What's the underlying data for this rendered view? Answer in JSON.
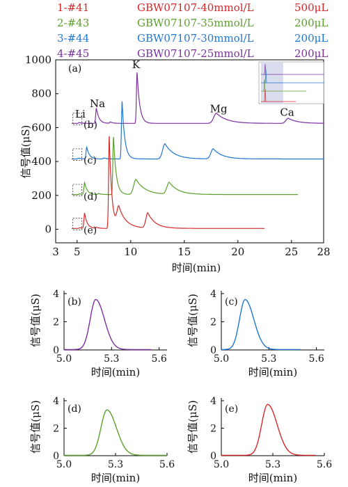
{
  "legend": [
    {
      "id": "1-#41",
      "sample": "GBW07107-40mmol/L",
      "volume": "500μL",
      "color": "#d62728"
    },
    {
      "id": "2-#43",
      "sample": "GBW07107-35mmol/L",
      "volume": "200μL",
      "color": "#5aa02c"
    },
    {
      "id": "3-#44",
      "sample": "GBW07107-30mmol/L",
      "volume": "200μL",
      "color": "#1f77d4"
    },
    {
      "id": "4-#45",
      "sample": "GBW07107-25mmol/L",
      "volume": "200μL",
      "color": "#7b2fa0"
    }
  ],
  "chart_data": [
    {
      "type": "line",
      "panel_label": "(a)",
      "xlabel": "时间(min)",
      "ylabel": "信号值(μS)",
      "x_ticks": [
        "3",
        "5",
        "10",
        "15",
        "20",
        "25",
        "28"
      ],
      "x_tick_values": [
        3,
        5,
        10,
        15,
        20,
        25,
        28
      ],
      "y_ticks": [
        "0",
        "200",
        "400",
        "600",
        "800",
        "1000"
      ],
      "y_tick_values": [
        0,
        200,
        400,
        600,
        800,
        1000
      ],
      "xlim": [
        3,
        28
      ],
      "ylim": [
        -80,
        1000
      ],
      "peak_labels": [
        {
          "text": "Li",
          "x": 5.3,
          "y": 660
        },
        {
          "text": "Na",
          "x": 6.9,
          "y": 720
        },
        {
          "text": "K",
          "x": 10.5,
          "y": 950
        },
        {
          "text": "Mg",
          "x": 18.2,
          "y": 690
        },
        {
          "text": "Ca",
          "x": 24.6,
          "y": 670
        }
      ],
      "inset_labels": [
        {
          "text": "(b)",
          "x": 5.6,
          "y": 598
        },
        {
          "text": "(c)",
          "x": 5.6,
          "y": 388
        },
        {
          "text": "(d)",
          "x": 5.6,
          "y": 175
        },
        {
          "text": "(e)",
          "x": 5.6,
          "y": -25
        }
      ],
      "series": [
        {
          "color": "#7b2fa0",
          "baseline": 625,
          "x_end": 28,
          "peaks": [
            [
              5.2,
              5
            ],
            [
              6.8,
              90
            ],
            [
              8.1,
              8
            ],
            [
              10.6,
              300
            ],
            [
              18.0,
              60,
              1.4
            ],
            [
              24.7,
              30,
              1.2
            ]
          ]
        },
        {
          "color": "#1f77d4",
          "baseline": 415,
          "x_end": 28,
          "peaks": [
            [
              5.15,
              5
            ],
            [
              5.9,
              70
            ],
            [
              7.5,
              6
            ],
            [
              9.2,
              340
            ],
            [
              13.2,
              90,
              1.2
            ],
            [
              17.7,
              60,
              1.2
            ]
          ]
        },
        {
          "color": "#5aa02c",
          "baseline": 205,
          "x_end": 25.6,
          "peaks": [
            [
              5.25,
              4
            ],
            [
              5.7,
              70
            ],
            [
              7.0,
              6
            ],
            [
              8.4,
              340
            ],
            [
              10.5,
              90,
              1.2
            ],
            [
              13.6,
              70,
              1.2
            ]
          ]
        },
        {
          "color": "#d62728",
          "baseline": 5,
          "x_end": 22.5,
          "peaks": [
            [
              5.25,
              4
            ],
            [
              5.7,
              90
            ],
            [
              6.8,
              6
            ],
            [
              8.0,
              545
            ],
            [
              8.9,
              120,
              1.0
            ],
            [
              11.6,
              90,
              1.0
            ]
          ]
        }
      ]
    },
    {
      "type": "line",
      "panel_label": "(b)",
      "xlabel": "时间(min)",
      "ylabel": "信号值(μS)",
      "x_ticks": [
        "5.0",
        "5.3",
        "5.6"
      ],
      "x_tick_values": [
        5.0,
        5.3,
        5.6
      ],
      "y_ticks": [
        "0",
        "2",
        "4"
      ],
      "y_tick_values": [
        0,
        2,
        4
      ],
      "xlim": [
        5.0,
        5.65
      ],
      "ylim": [
        0,
        4.2
      ],
      "series": [
        {
          "color": "#7b2fa0",
          "peak_x": 5.2,
          "peak_y": 3.55,
          "x_start": 5.0,
          "x_end": 5.55
        }
      ]
    },
    {
      "type": "line",
      "panel_label": "(c)",
      "xlabel": "时间(min)",
      "ylabel": "信号值(μS)",
      "x_ticks": [
        "5.0",
        "5.3",
        "5.6"
      ],
      "x_tick_values": [
        5.0,
        5.3,
        5.6
      ],
      "y_ticks": [
        "0",
        "2",
        "4"
      ],
      "y_tick_values": [
        0,
        2,
        4
      ],
      "xlim": [
        5.0,
        5.65
      ],
      "ylim": [
        0,
        4.2
      ],
      "series": [
        {
          "color": "#1f77d4",
          "peak_x": 5.15,
          "peak_y": 3.55,
          "x_start": 5.0,
          "x_end": 5.5
        }
      ]
    },
    {
      "type": "line",
      "panel_label": "(d)",
      "xlabel": "时间(min)",
      "ylabel": "信号值(μS)",
      "x_ticks": [
        "5.0",
        "5.3",
        "5.6"
      ],
      "x_tick_values": [
        5.0,
        5.3,
        5.6
      ],
      "y_ticks": [
        "0",
        "2",
        "4"
      ],
      "y_tick_values": [
        0,
        2,
        4
      ],
      "xlim": [
        5.0,
        5.6
      ],
      "ylim": [
        0,
        4.2
      ],
      "series": [
        {
          "color": "#5aa02c",
          "peak_x": 5.25,
          "peak_y": 3.3,
          "x_start": 5.0,
          "x_end": 5.6
        }
      ]
    },
    {
      "type": "line",
      "panel_label": "(e)",
      "xlabel": "时间(min)",
      "ylabel": "信号值(μS)",
      "x_ticks": [
        "5.0",
        "5.3",
        "5.6"
      ],
      "x_tick_values": [
        5.0,
        5.3,
        5.6
      ],
      "y_ticks": [
        "0",
        "2",
        "4"
      ],
      "y_tick_values": [
        0,
        2,
        4
      ],
      "xlim": [
        5.0,
        5.6
      ],
      "ylim": [
        0,
        4.2
      ],
      "series": [
        {
          "color": "#d62728",
          "peak_x": 5.27,
          "peak_y": 3.7,
          "x_start": 5.0,
          "x_end": 5.55
        }
      ]
    }
  ]
}
